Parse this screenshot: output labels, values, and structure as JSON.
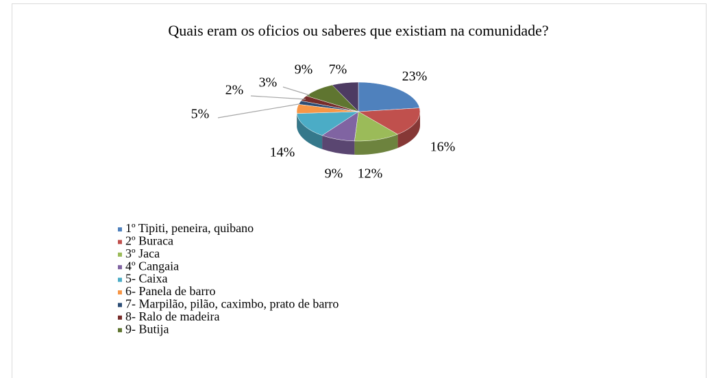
{
  "chart_data": {
    "type": "pie",
    "title": "Quais eram os oficios ou saberes que existiam na comunidade?",
    "categories": [
      "1º Tipiti, peneira, quibano",
      "2º Buraca",
      "3º Jaca",
      "4º Cangaia",
      "5- Caixa",
      "6- Panela de barro",
      "7- Marpilão, pilão, caximbo, prato de barro",
      "8- Ralo de madeira",
      "9- Butija",
      null
    ],
    "values": [
      23,
      16,
      12,
      9,
      14,
      5,
      2,
      3,
      9,
      7
    ],
    "value_labels": [
      "23%",
      "16%",
      "12%",
      "9%",
      "14%",
      "5%",
      "2%",
      "3%",
      "9%",
      "7%"
    ],
    "colors": [
      "#4f81bd",
      "#c0504d",
      "#9bbb59",
      "#8064a2",
      "#4bacc6",
      "#f79646",
      "#2c4d75",
      "#772c2a",
      "#5f7530",
      "#4d3b62"
    ],
    "legend": "bottom-left"
  }
}
